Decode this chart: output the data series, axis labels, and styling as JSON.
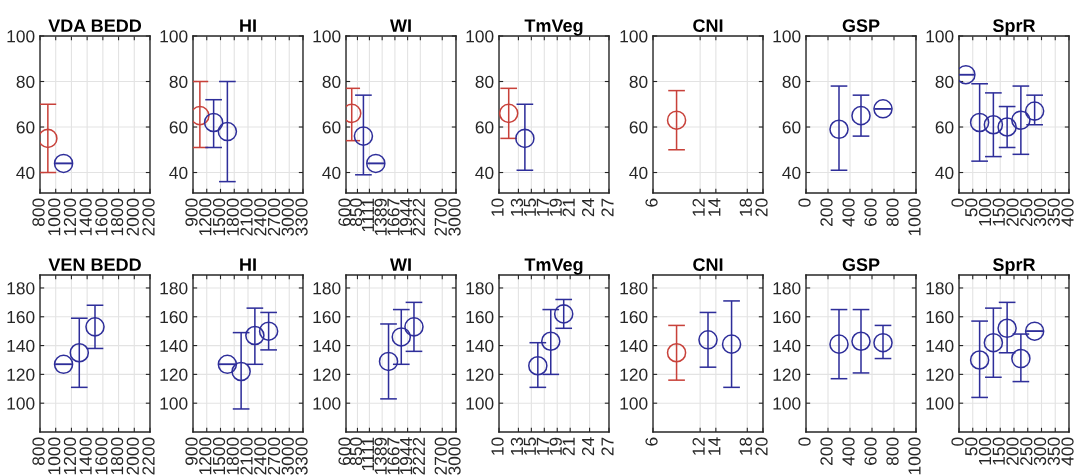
{
  "chart_data": [
    {
      "type": "scatter",
      "title": "VDA BEDD",
      "xlim": [
        800,
        2200
      ],
      "xticks": [
        800,
        1000,
        1200,
        1400,
        1600,
        1800,
        2000,
        2200
      ],
      "ylim": [
        31,
        100
      ],
      "yticks": [
        40,
        60,
        80,
        100
      ],
      "grid": true,
      "marker": "circle",
      "series": [
        {
          "color": "#c8413a",
          "x": [
            900
          ],
          "values": [
            55
          ],
          "errors": [
            [
              40,
              70
            ]
          ]
        },
        {
          "color": "#2e2e9a",
          "x": [
            1100
          ],
          "values": [
            44
          ],
          "errors": [
            [
              44,
              44
            ]
          ]
        }
      ]
    },
    {
      "type": "scatter",
      "title": "HI",
      "xlim": [
        900,
        3300
      ],
      "xticks": [
        900,
        1200,
        1500,
        1800,
        2100,
        2400,
        2700,
        3000,
        3300
      ],
      "ylim": [
        31,
        100
      ],
      "yticks": [
        40,
        60,
        80,
        100
      ],
      "grid": true,
      "marker": "circle",
      "series": [
        {
          "color": "#c8413a",
          "x": [
            1050
          ],
          "values": [
            65
          ],
          "errors": [
            [
              51,
              80
            ]
          ]
        },
        {
          "color": "#2e2e9a",
          "x": [
            1350,
            1650
          ],
          "values": [
            62,
            58
          ],
          "errors": [
            [
              51,
              72
            ],
            [
              36,
              80
            ]
          ]
        }
      ]
    },
    {
      "type": "scatter",
      "title": "WI",
      "xlim": [
        600,
        3000
      ],
      "xticks": [
        600,
        850,
        1111,
        1389,
        1667,
        1944,
        2222,
        2700,
        3000
      ],
      "ylim": [
        31,
        100
      ],
      "yticks": [
        40,
        60,
        80,
        100
      ],
      "grid": true,
      "marker": "circle",
      "series": [
        {
          "color": "#c8413a",
          "x": [
            725
          ],
          "values": [
            66
          ],
          "errors": [
            [
              54,
              77
            ]
          ]
        },
        {
          "color": "#2e2e9a",
          "x": [
            980,
            1250
          ],
          "values": [
            56,
            44
          ],
          "errors": [
            [
              39,
              74
            ],
            [
              44,
              44
            ]
          ]
        }
      ]
    },
    {
      "type": "scatter",
      "title": "TmVeg",
      "xlim": [
        10,
        27
      ],
      "xticks": [
        10,
        13,
        15,
        17,
        19,
        21,
        24,
        27
      ],
      "ylim": [
        31,
        100
      ],
      "yticks": [
        40,
        60,
        80,
        100
      ],
      "grid": true,
      "marker": "circle",
      "series": [
        {
          "color": "#c8413a",
          "x": [
            11.5
          ],
          "values": [
            66
          ],
          "errors": [
            [
              55,
              77
            ]
          ]
        },
        {
          "color": "#2e2e9a",
          "x": [
            14
          ],
          "values": [
            55
          ],
          "errors": [
            [
              41,
              70
            ]
          ]
        }
      ]
    },
    {
      "type": "scatter",
      "title": "CNI",
      "xlim": [
        6,
        20
      ],
      "xticks": [
        6,
        12,
        14,
        18,
        20
      ],
      "ylim": [
        31,
        100
      ],
      "yticks": [
        40,
        60,
        80,
        100
      ],
      "grid": true,
      "marker": "circle",
      "series": [
        {
          "color": "#c8413a",
          "x": [
            9
          ],
          "values": [
            63
          ],
          "errors": [
            [
              50,
              76
            ]
          ]
        }
      ]
    },
    {
      "type": "scatter",
      "title": "GSP",
      "xlim": [
        0,
        1000
      ],
      "xticks": [
        0,
        200,
        400,
        600,
        800,
        1000
      ],
      "ylim": [
        31,
        100
      ],
      "yticks": [
        40,
        60,
        80,
        100
      ],
      "grid": true,
      "marker": "circle",
      "series": [
        {
          "color": "#2e2e9a",
          "x": [
            300,
            500,
            700
          ],
          "values": [
            59,
            65,
            68
          ],
          "errors": [
            [
              41,
              78
            ],
            [
              56,
              74
            ],
            [
              68,
              68
            ]
          ]
        }
      ]
    },
    {
      "type": "scatter",
      "title": "SprR",
      "xlim": [
        0,
        400
      ],
      "xticks": [
        0,
        50,
        100,
        150,
        200,
        250,
        300,
        350,
        400
      ],
      "ylim": [
        31,
        100
      ],
      "yticks": [
        40,
        60,
        80,
        100
      ],
      "grid": true,
      "marker": "circle",
      "series": [
        {
          "color": "#2e2e9a",
          "x": [
            25,
            75,
            125,
            175,
            225,
            275
          ],
          "values": [
            83,
            62,
            61,
            60,
            63,
            67
          ],
          "errors": [
            [
              83,
              83
            ],
            [
              45,
              79
            ],
            [
              47,
              75
            ],
            [
              51,
              69
            ],
            [
              48,
              78
            ],
            [
              61,
              74
            ]
          ]
        }
      ]
    },
    {
      "type": "scatter",
      "title": "VEN BEDD",
      "xlim": [
        800,
        2200
      ],
      "xticks": [
        800,
        1000,
        1200,
        1400,
        1600,
        1800,
        2000,
        2200
      ],
      "ylim": [
        80,
        189
      ],
      "yticks": [
        100,
        120,
        140,
        160,
        180
      ],
      "grid": true,
      "marker": "circle",
      "series": [
        {
          "color": "#2e2e9a",
          "x": [
            1100,
            1300,
            1500
          ],
          "values": [
            127,
            135,
            153
          ],
          "errors": [
            [
              127,
              127
            ],
            [
              111,
              159
            ],
            [
              138,
              168
            ]
          ]
        }
      ]
    },
    {
      "type": "scatter",
      "title": "HI",
      "xlim": [
        900,
        3300
      ],
      "xticks": [
        900,
        1200,
        1500,
        1800,
        2100,
        2400,
        2700,
        3000,
        3300
      ],
      "ylim": [
        80,
        189
      ],
      "yticks": [
        100,
        120,
        140,
        160,
        180
      ],
      "grid": true,
      "marker": "circle",
      "series": [
        {
          "color": "#2e2e9a",
          "x": [
            1650,
            1950,
            2250,
            2550
          ],
          "values": [
            127,
            122,
            147,
            150
          ],
          "errors": [
            [
              127,
              127
            ],
            [
              96,
              149
            ],
            [
              127,
              166
            ],
            [
              137,
              163
            ]
          ]
        }
      ]
    },
    {
      "type": "scatter",
      "title": "WI",
      "xlim": [
        600,
        3000
      ],
      "xticks": [
        600,
        850,
        1111,
        1389,
        1667,
        1944,
        2222,
        2700,
        3000
      ],
      "ylim": [
        80,
        189
      ],
      "yticks": [
        100,
        120,
        140,
        160,
        180
      ],
      "grid": true,
      "marker": "circle",
      "series": [
        {
          "color": "#2e2e9a",
          "x": [
            1528,
            1806,
            2083
          ],
          "values": [
            129,
            146,
            153
          ],
          "errors": [
            [
              103,
              155
            ],
            [
              127,
              165
            ],
            [
              136,
              170
            ]
          ]
        }
      ]
    },
    {
      "type": "scatter",
      "title": "TmVeg",
      "xlim": [
        10,
        27
      ],
      "xticks": [
        10,
        13,
        15,
        17,
        19,
        21,
        24,
        27
      ],
      "ylim": [
        80,
        189
      ],
      "yticks": [
        100,
        120,
        140,
        160,
        180
      ],
      "grid": true,
      "marker": "circle",
      "series": [
        {
          "color": "#2e2e9a",
          "x": [
            16,
            18,
            20
          ],
          "values": [
            126,
            143,
            162
          ],
          "errors": [
            [
              111,
              142
            ],
            [
              120,
              165
            ],
            [
              152,
              172
            ]
          ]
        }
      ]
    },
    {
      "type": "scatter",
      "title": "CNI",
      "xlim": [
        6,
        20
      ],
      "xticks": [
        6,
        12,
        14,
        18,
        20
      ],
      "ylim": [
        80,
        189
      ],
      "yticks": [
        100,
        120,
        140,
        160,
        180
      ],
      "grid": true,
      "marker": "circle",
      "series": [
        {
          "color": "#c8413a",
          "x": [
            9
          ],
          "values": [
            135
          ],
          "errors": [
            [
              116,
              154
            ]
          ]
        },
        {
          "color": "#2e2e9a",
          "x": [
            13,
            16
          ],
          "values": [
            144,
            141
          ],
          "errors": [
            [
              125,
              163
            ],
            [
              111,
              171
            ]
          ]
        }
      ]
    },
    {
      "type": "scatter",
      "title": "GSP",
      "xlim": [
        0,
        1000
      ],
      "xticks": [
        0,
        200,
        400,
        600,
        800,
        1000
      ],
      "ylim": [
        80,
        189
      ],
      "yticks": [
        100,
        120,
        140,
        160,
        180
      ],
      "grid": true,
      "marker": "circle",
      "series": [
        {
          "color": "#2e2e9a",
          "x": [
            300,
            500,
            700
          ],
          "values": [
            141,
            143,
            142
          ],
          "errors": [
            [
              117,
              165
            ],
            [
              121,
              165
            ],
            [
              131,
              154
            ]
          ]
        }
      ]
    },
    {
      "type": "scatter",
      "title": "SprR",
      "xlim": [
        0,
        400
      ],
      "xticks": [
        0,
        50,
        100,
        150,
        200,
        250,
        300,
        350,
        400
      ],
      "ylim": [
        80,
        189
      ],
      "yticks": [
        100,
        120,
        140,
        160,
        180
      ],
      "grid": true,
      "marker": "circle",
      "series": [
        {
          "color": "#2e2e9a",
          "x": [
            75,
            125,
            175,
            225,
            275
          ],
          "values": [
            130,
            142,
            152,
            131,
            150
          ],
          "errors": [
            [
              104,
              157
            ],
            [
              118,
              166
            ],
            [
              135,
              170
            ],
            [
              115,
              148
            ],
            [
              150,
              150
            ]
          ]
        }
      ]
    }
  ]
}
